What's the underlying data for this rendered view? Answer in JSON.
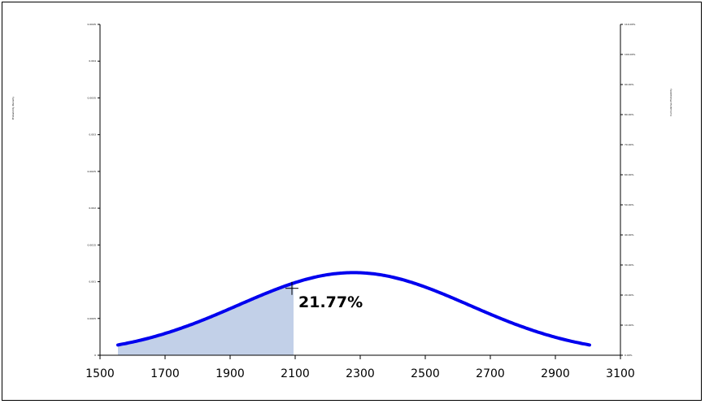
{
  "chart_data": {
    "type": "area",
    "title": "",
    "xlabel": "",
    "ylabel": "Probability Density",
    "y2label": "Cumulative Probability",
    "xlim": [
      1500,
      3100
    ],
    "x_ticks": [
      "1500",
      "1700",
      "1900",
      "2100",
      "2300",
      "2500",
      "2700",
      "2900",
      "3100"
    ],
    "ylim": [
      0,
      0.0045
    ],
    "y_ticks": [
      "0",
      "0.0005",
      "0.001",
      "0.0015",
      "0.002",
      "0.0025",
      "0.003",
      "0.0035",
      "0.004",
      "0.0045"
    ],
    "y2lim": [
      0,
      1.1
    ],
    "y2_ticks": [
      "0.00%",
      "10.00%",
      "20.00%",
      "30.00%",
      "40.00%",
      "50.00%",
      "60.00%",
      "70.00%",
      "80.00%",
      "90.00%",
      "100.00%",
      "110.00%"
    ],
    "grid": false,
    "legend": "none",
    "series": [
      {
        "curve": "normal-density",
        "mean": 2280,
        "std": 355,
        "x_start": 1555,
        "x_end": 3005,
        "line_color": "#0000ee"
      }
    ],
    "shaded_region": {
      "x_from": 1555,
      "x_to": 2095,
      "fill_color": "#c2d0e8"
    },
    "marker": {
      "x": 2090,
      "y": 0.00091,
      "symbol": "plus"
    },
    "annotation": {
      "text": "21.77%",
      "x": 2110,
      "y": 0.00065
    }
  }
}
